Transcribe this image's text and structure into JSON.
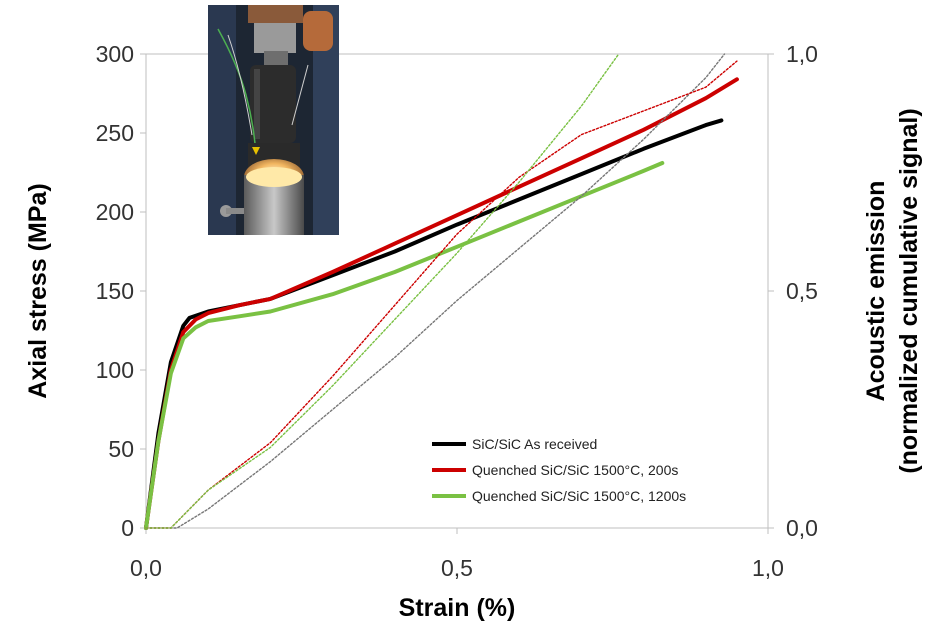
{
  "chart_data": {
    "type": "line",
    "xlabel": "Strain (%)",
    "ylabel": "Axial stress (MPa)",
    "y2label_line1": "Acoustic emission",
    "y2label_line2": "(normalized cumulative signal)",
    "xlim": [
      0,
      1.0
    ],
    "ylim": [
      0,
      300
    ],
    "y2lim": [
      0,
      1.0
    ],
    "x_ticks": [
      0,
      0.5,
      1.0
    ],
    "x_tick_labels": [
      "0,0",
      "0,5",
      "1,0"
    ],
    "y_ticks": [
      0,
      50,
      100,
      150,
      200,
      250,
      300
    ],
    "y_tick_labels": [
      "0",
      "50",
      "100",
      "150",
      "200",
      "250",
      "300"
    ],
    "y2_ticks": [
      0,
      0.5,
      1.0
    ],
    "y2_tick_labels": [
      "0,0",
      "0,5",
      "1,0"
    ],
    "legend_position": "bottom-right",
    "series": [
      {
        "name": "SiC/SiC As received",
        "color": "#000000",
        "axis": "stress",
        "x": [
          0,
          0.02,
          0.04,
          0.06,
          0.07,
          0.1,
          0.15,
          0.2,
          0.3,
          0.4,
          0.5,
          0.6,
          0.7,
          0.8,
          0.9,
          0.925
        ],
        "y": [
          0,
          60,
          105,
          128,
          133,
          137,
          141,
          145,
          160,
          175,
          192,
          208,
          224,
          240,
          255,
          258
        ]
      },
      {
        "name": "Quenched SiC/SiC 1500°C, 200s",
        "color": "#cc0000",
        "axis": "stress",
        "x": [
          0,
          0.02,
          0.04,
          0.06,
          0.08,
          0.1,
          0.15,
          0.2,
          0.3,
          0.4,
          0.5,
          0.6,
          0.7,
          0.8,
          0.9,
          0.95
        ],
        "y": [
          0,
          55,
          100,
          124,
          132,
          136,
          141,
          145,
          162,
          180,
          198,
          216,
          234,
          252,
          272,
          284
        ]
      },
      {
        "name": "Quenched SiC/SiC 1500°C, 1200s",
        "color": "#7ac143",
        "axis": "stress",
        "x": [
          0,
          0.02,
          0.04,
          0.06,
          0.08,
          0.1,
          0.15,
          0.2,
          0.3,
          0.4,
          0.5,
          0.6,
          0.7,
          0.8,
          0.83
        ],
        "y": [
          0,
          55,
          98,
          120,
          127,
          131,
          134,
          137,
          148,
          162,
          178,
          194,
          210,
          226,
          231
        ]
      },
      {
        "color": "#777777",
        "axis": "acoustic",
        "dotted": true,
        "x": [
          0,
          0.05,
          0.1,
          0.2,
          0.3,
          0.4,
          0.5,
          0.6,
          0.7,
          0.8,
          0.9,
          0.93
        ],
        "y": [
          0,
          0,
          0.04,
          0.14,
          0.25,
          0.36,
          0.48,
          0.59,
          0.7,
          0.82,
          0.95,
          1.0
        ]
      },
      {
        "color": "#cc0000",
        "axis": "acoustic",
        "dotted": true,
        "x": [
          0,
          0.04,
          0.1,
          0.2,
          0.3,
          0.4,
          0.5,
          0.6,
          0.7,
          0.8,
          0.9,
          0.95
        ],
        "y": [
          0,
          0,
          0.08,
          0.18,
          0.32,
          0.47,
          0.62,
          0.74,
          0.83,
          0.88,
          0.93,
          0.985
        ]
      },
      {
        "color": "#7ac143",
        "axis": "acoustic",
        "dotted": true,
        "x": [
          0,
          0.04,
          0.1,
          0.2,
          0.3,
          0.4,
          0.5,
          0.6,
          0.7,
          0.76
        ],
        "y": [
          0,
          0,
          0.08,
          0.17,
          0.3,
          0.44,
          0.58,
          0.73,
          0.89,
          1.0
        ]
      }
    ]
  }
}
